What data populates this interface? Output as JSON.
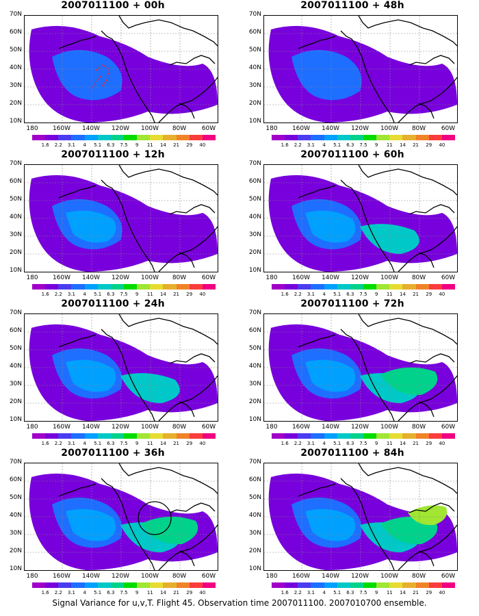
{
  "panels": [
    {
      "title": "2007011100 + 00h",
      "has_track": true,
      "has_circle": false
    },
    {
      "title": "2007011100 + 48h",
      "has_track": false,
      "has_circle": false
    },
    {
      "title": "2007011100 + 12h",
      "has_track": false,
      "has_circle": false
    },
    {
      "title": "2007011100 + 60h",
      "has_track": false,
      "has_circle": false
    },
    {
      "title": "2007011100 + 24h",
      "has_track": false,
      "has_circle": false
    },
    {
      "title": "2007011100 + 72h",
      "has_track": false,
      "has_circle": false
    },
    {
      "title": "2007011100 + 36h",
      "has_track": false,
      "has_circle": true
    },
    {
      "title": "2007011100 + 84h",
      "has_track": false,
      "has_circle": false
    }
  ],
  "lat_labels": [
    "70N",
    "60N",
    "50N",
    "40N",
    "30N",
    "20N",
    "10N"
  ],
  "lon_labels": [
    "180",
    "160W",
    "140W",
    "120W",
    "100W",
    "80W",
    "60W"
  ],
  "colorbar": {
    "colors": [
      "#a000c8",
      "#7800dc",
      "#4a3cf0",
      "#1e6eff",
      "#00a0ff",
      "#00c8c8",
      "#00d28c",
      "#00dc00",
      "#a0e632",
      "#e6dc32",
      "#e6af2d",
      "#f08228",
      "#fa3c3c",
      "#f00082"
    ],
    "ticks": [
      "1.6",
      "2.2",
      "3.1",
      "4",
      "5.1",
      "6.3",
      "7.5",
      "9",
      "11",
      "14",
      "21",
      "29",
      "40"
    ]
  },
  "caption": "Signal Variance for u,v,T. Flight 45. Observation time 2007011100. 2007010700 ensemble."
}
